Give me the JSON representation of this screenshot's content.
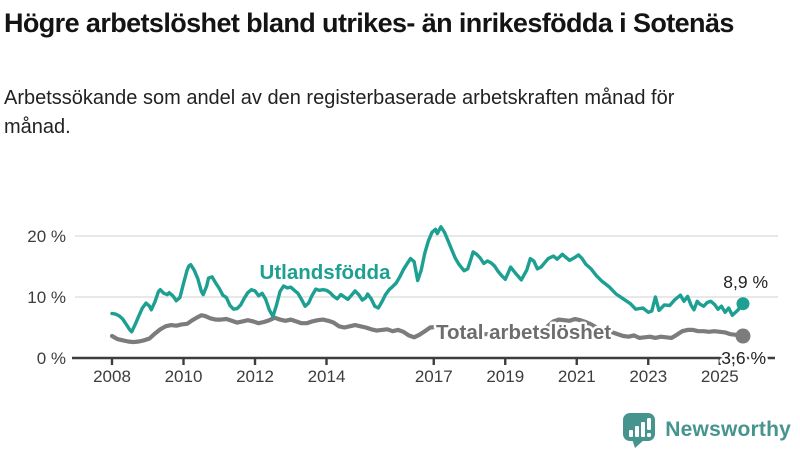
{
  "header": {
    "title": "Högre arbetslöshet bland utrikes- än inrikesfödda i Sotenäs",
    "subtitle": "Arbetssökande som andel av den registerbaserade arbetskraften månad för månad."
  },
  "footer": {
    "brand": "Newsworthy"
  },
  "colors": {
    "accent_teal": "#1d9f92",
    "line_gray": "#7c7c7c",
    "label_gray": "#6d6d70",
    "axis": "#3d3d3d",
    "gridline": "#e0e0e0",
    "logo_teal": "#45948e"
  },
  "chart_data": {
    "type": "line",
    "title": "Högre arbetslöshet bland utrikes- än inrikesfödda i Sotenäs",
    "subtitle": "Arbetssökande som andel av den registerbaserade arbetskraften månad för månad.",
    "unit": "%",
    "x_axis": {
      "range": [
        2008,
        2025.75
      ],
      "ticks": [
        2008,
        2010,
        2012,
        2014,
        2017,
        2019,
        2021,
        2023,
        2025
      ]
    },
    "y_axis": {
      "range": [
        0,
        22
      ],
      "ticks": [
        0,
        10,
        20
      ],
      "tick_labels": [
        "0 %",
        "10 %",
        "20 %"
      ],
      "gridlines": [
        10,
        20
      ]
    },
    "legend_position": "inline-labels",
    "grid": "horizontal-only",
    "series": [
      {
        "name": "Utlandsfödda",
        "color": "#1d9f92",
        "end_label": "8,9 %",
        "end_value": 8.9,
        "points": [
          [
            2008.0,
            7.3
          ],
          [
            2008.1,
            7.2
          ],
          [
            2008.2,
            6.9
          ],
          [
            2008.3,
            6.4
          ],
          [
            2008.4,
            5.5
          ],
          [
            2008.5,
            4.6
          ],
          [
            2008.55,
            4.3
          ],
          [
            2008.65,
            5.5
          ],
          [
            2008.75,
            6.9
          ],
          [
            2008.85,
            8.2
          ],
          [
            2008.95,
            9.0
          ],
          [
            2009.05,
            8.5
          ],
          [
            2009.1,
            7.9
          ],
          [
            2009.2,
            9.2
          ],
          [
            2009.3,
            10.9
          ],
          [
            2009.35,
            11.2
          ],
          [
            2009.45,
            10.6
          ],
          [
            2009.55,
            10.4
          ],
          [
            2009.6,
            10.7
          ],
          [
            2009.7,
            10.2
          ],
          [
            2009.8,
            9.4
          ],
          [
            2009.9,
            9.9
          ],
          [
            2010.0,
            12.2
          ],
          [
            2010.1,
            14.4
          ],
          [
            2010.15,
            15.1
          ],
          [
            2010.2,
            15.3
          ],
          [
            2010.3,
            14.4
          ],
          [
            2010.4,
            13.0
          ],
          [
            2010.5,
            10.9
          ],
          [
            2010.55,
            10.4
          ],
          [
            2010.65,
            11.8
          ],
          [
            2010.7,
            13.1
          ],
          [
            2010.8,
            13.3
          ],
          [
            2010.9,
            12.3
          ],
          [
            2011.0,
            11.4
          ],
          [
            2011.1,
            10.3
          ],
          [
            2011.2,
            9.9
          ],
          [
            2011.3,
            8.6
          ],
          [
            2011.4,
            8.0
          ],
          [
            2011.5,
            8.1
          ],
          [
            2011.6,
            8.7
          ],
          [
            2011.7,
            9.8
          ],
          [
            2011.8,
            10.7
          ],
          [
            2011.9,
            11.2
          ],
          [
            2012.0,
            11.0
          ],
          [
            2012.1,
            10.2
          ],
          [
            2012.2,
            10.6
          ],
          [
            2012.3,
            9.6
          ],
          [
            2012.4,
            7.9
          ],
          [
            2012.5,
            6.8
          ],
          [
            2012.6,
            8.6
          ],
          [
            2012.7,
            10.9
          ],
          [
            2012.8,
            11.8
          ],
          [
            2012.9,
            11.5
          ],
          [
            2013.0,
            11.6
          ],
          [
            2013.1,
            11.1
          ],
          [
            2013.2,
            10.6
          ],
          [
            2013.3,
            9.6
          ],
          [
            2013.4,
            8.5
          ],
          [
            2013.5,
            9.0
          ],
          [
            2013.6,
            10.3
          ],
          [
            2013.7,
            11.3
          ],
          [
            2013.8,
            11.1
          ],
          [
            2013.9,
            11.2
          ],
          [
            2014.0,
            11.1
          ],
          [
            2014.1,
            10.7
          ],
          [
            2014.2,
            10.1
          ],
          [
            2014.3,
            9.7
          ],
          [
            2014.4,
            10.4
          ],
          [
            2014.5,
            10.0
          ],
          [
            2014.6,
            9.6
          ],
          [
            2014.7,
            10.3
          ],
          [
            2014.8,
            11.0
          ],
          [
            2014.9,
            10.4
          ],
          [
            2015.0,
            9.5
          ],
          [
            2015.1,
            9.9
          ],
          [
            2015.15,
            10.5
          ],
          [
            2015.25,
            9.7
          ],
          [
            2015.35,
            8.5
          ],
          [
            2015.45,
            8.2
          ],
          [
            2015.55,
            9.2
          ],
          [
            2015.65,
            10.4
          ],
          [
            2015.75,
            11.2
          ],
          [
            2015.85,
            11.7
          ],
          [
            2015.95,
            12.3
          ],
          [
            2016.05,
            13.3
          ],
          [
            2016.15,
            14.5
          ],
          [
            2016.25,
            15.4
          ],
          [
            2016.35,
            16.3
          ],
          [
            2016.45,
            15.8
          ],
          [
            2016.55,
            12.7
          ],
          [
            2016.65,
            14.4
          ],
          [
            2016.75,
            17.2
          ],
          [
            2016.85,
            19.2
          ],
          [
            2016.95,
            20.6
          ],
          [
            2017.05,
            21.1
          ],
          [
            2017.1,
            20.4
          ],
          [
            2017.2,
            21.5
          ],
          [
            2017.3,
            20.6
          ],
          [
            2017.4,
            19.2
          ],
          [
            2017.5,
            17.8
          ],
          [
            2017.6,
            16.4
          ],
          [
            2017.7,
            15.4
          ],
          [
            2017.85,
            14.3
          ],
          [
            2017.95,
            14.6
          ],
          [
            2018.05,
            16.4
          ],
          [
            2018.1,
            17.4
          ],
          [
            2018.2,
            17.0
          ],
          [
            2018.3,
            16.4
          ],
          [
            2018.4,
            15.5
          ],
          [
            2018.5,
            15.9
          ],
          [
            2018.6,
            15.6
          ],
          [
            2018.7,
            15.1
          ],
          [
            2018.8,
            14.2
          ],
          [
            2018.9,
            13.5
          ],
          [
            2019.0,
            12.9
          ],
          [
            2019.1,
            14.2
          ],
          [
            2019.15,
            14.9
          ],
          [
            2019.3,
            13.8
          ],
          [
            2019.45,
            12.8
          ],
          [
            2019.6,
            14.4
          ],
          [
            2019.7,
            16.3
          ],
          [
            2019.8,
            15.9
          ],
          [
            2019.9,
            14.6
          ],
          [
            2020.0,
            14.9
          ],
          [
            2020.1,
            15.6
          ],
          [
            2020.2,
            16.3
          ],
          [
            2020.35,
            16.7
          ],
          [
            2020.45,
            16.2
          ],
          [
            2020.6,
            17.0
          ],
          [
            2020.7,
            16.5
          ],
          [
            2020.8,
            16.0
          ],
          [
            2020.95,
            16.5
          ],
          [
            2021.05,
            16.9
          ],
          [
            2021.15,
            16.3
          ],
          [
            2021.25,
            15.4
          ],
          [
            2021.4,
            14.6
          ],
          [
            2021.55,
            13.5
          ],
          [
            2021.7,
            12.6
          ],
          [
            2021.9,
            11.7
          ],
          [
            2022.1,
            10.5
          ],
          [
            2022.3,
            9.7
          ],
          [
            2022.5,
            8.9
          ],
          [
            2022.65,
            8.0
          ],
          [
            2022.85,
            8.2
          ],
          [
            2023.0,
            7.5
          ],
          [
            2023.1,
            7.7
          ],
          [
            2023.2,
            10.0
          ],
          [
            2023.3,
            7.8
          ],
          [
            2023.45,
            8.7
          ],
          [
            2023.6,
            8.6
          ],
          [
            2023.75,
            9.6
          ],
          [
            2023.9,
            10.3
          ],
          [
            2024.0,
            9.3
          ],
          [
            2024.1,
            10.1
          ],
          [
            2024.2,
            8.6
          ],
          [
            2024.28,
            7.9
          ],
          [
            2024.37,
            9.3
          ],
          [
            2024.45,
            8.8
          ],
          [
            2024.55,
            8.5
          ],
          [
            2024.65,
            9.1
          ],
          [
            2024.75,
            9.3
          ],
          [
            2024.85,
            8.8
          ],
          [
            2024.95,
            8.0
          ],
          [
            2025.05,
            8.5
          ],
          [
            2025.15,
            7.5
          ],
          [
            2025.25,
            8.2
          ],
          [
            2025.35,
            7.0
          ],
          [
            2025.5,
            7.8
          ],
          [
            2025.65,
            8.9
          ]
        ]
      },
      {
        "name": "Total arbetslöshet",
        "color": "#7c7c7c",
        "end_label": "3,6 %",
        "end_value": 3.6,
        "points": [
          [
            2008.0,
            3.6
          ],
          [
            2008.15,
            3.1
          ],
          [
            2008.3,
            2.9
          ],
          [
            2008.45,
            2.7
          ],
          [
            2008.6,
            2.6
          ],
          [
            2008.75,
            2.7
          ],
          [
            2008.9,
            2.9
          ],
          [
            2009.05,
            3.2
          ],
          [
            2009.2,
            4.0
          ],
          [
            2009.35,
            4.7
          ],
          [
            2009.5,
            5.2
          ],
          [
            2009.65,
            5.4
          ],
          [
            2009.8,
            5.3
          ],
          [
            2009.95,
            5.5
          ],
          [
            2010.1,
            5.6
          ],
          [
            2010.25,
            6.2
          ],
          [
            2010.4,
            6.7
          ],
          [
            2010.5,
            7.0
          ],
          [
            2010.6,
            6.9
          ],
          [
            2010.75,
            6.5
          ],
          [
            2010.9,
            6.3
          ],
          [
            2011.05,
            6.3
          ],
          [
            2011.2,
            6.4
          ],
          [
            2011.35,
            6.1
          ],
          [
            2011.5,
            5.8
          ],
          [
            2011.65,
            6.0
          ],
          [
            2011.8,
            6.2
          ],
          [
            2011.95,
            6.0
          ],
          [
            2012.1,
            5.7
          ],
          [
            2012.25,
            5.9
          ],
          [
            2012.4,
            6.2
          ],
          [
            2012.55,
            6.6
          ],
          [
            2012.7,
            6.3
          ],
          [
            2012.85,
            6.1
          ],
          [
            2013.0,
            6.3
          ],
          [
            2013.15,
            6.0
          ],
          [
            2013.3,
            5.7
          ],
          [
            2013.45,
            5.7
          ],
          [
            2013.6,
            6.0
          ],
          [
            2013.75,
            6.2
          ],
          [
            2013.9,
            6.3
          ],
          [
            2014.05,
            6.1
          ],
          [
            2014.2,
            5.8
          ],
          [
            2014.35,
            5.2
          ],
          [
            2014.5,
            5.0
          ],
          [
            2014.65,
            5.2
          ],
          [
            2014.8,
            5.4
          ],
          [
            2014.95,
            5.2
          ],
          [
            2015.1,
            5.0
          ],
          [
            2015.25,
            4.7
          ],
          [
            2015.4,
            4.5
          ],
          [
            2015.55,
            4.6
          ],
          [
            2015.7,
            4.7
          ],
          [
            2015.85,
            4.4
          ],
          [
            2016.0,
            4.6
          ],
          [
            2016.15,
            4.3
          ],
          [
            2016.3,
            3.7
          ],
          [
            2016.45,
            3.4
          ],
          [
            2016.6,
            3.8
          ],
          [
            2016.75,
            4.4
          ],
          [
            2016.9,
            5.0
          ],
          [
            2017.05,
            5.1
          ],
          [
            2017.2,
            4.8
          ],
          [
            2017.35,
            4.5
          ],
          [
            2017.5,
            4.3
          ],
          [
            2017.65,
            4.2
          ],
          [
            2017.8,
            4.4
          ],
          [
            2017.95,
            4.6
          ],
          [
            2018.1,
            4.4
          ],
          [
            2018.25,
            4.1
          ],
          [
            2018.4,
            3.9
          ],
          [
            2018.55,
            3.9
          ],
          [
            2018.7,
            4.0
          ],
          [
            2018.85,
            4.1
          ],
          [
            2019.0,
            4.2
          ],
          [
            2019.15,
            4.0
          ],
          [
            2019.3,
            3.9
          ],
          [
            2019.45,
            3.8
          ],
          [
            2019.6,
            3.9
          ],
          [
            2019.75,
            4.1
          ],
          [
            2019.9,
            4.2
          ],
          [
            2020.05,
            4.4
          ],
          [
            2020.2,
            5.3
          ],
          [
            2020.35,
            6.0
          ],
          [
            2020.5,
            6.3
          ],
          [
            2020.65,
            6.2
          ],
          [
            2020.8,
            6.1
          ],
          [
            2020.95,
            6.4
          ],
          [
            2021.1,
            6.2
          ],
          [
            2021.25,
            5.9
          ],
          [
            2021.4,
            5.5
          ],
          [
            2021.55,
            5.0
          ],
          [
            2021.7,
            4.7
          ],
          [
            2021.85,
            4.5
          ],
          [
            2022.0,
            4.2
          ],
          [
            2022.15,
            3.9
          ],
          [
            2022.3,
            3.6
          ],
          [
            2022.45,
            3.5
          ],
          [
            2022.6,
            3.7
          ],
          [
            2022.75,
            3.3
          ],
          [
            2022.9,
            3.4
          ],
          [
            2023.05,
            3.5
          ],
          [
            2023.2,
            3.3
          ],
          [
            2023.35,
            3.5
          ],
          [
            2023.5,
            3.4
          ],
          [
            2023.65,
            3.3
          ],
          [
            2023.8,
            3.8
          ],
          [
            2023.95,
            4.4
          ],
          [
            2024.1,
            4.6
          ],
          [
            2024.25,
            4.6
          ],
          [
            2024.4,
            4.4
          ],
          [
            2024.55,
            4.4
          ],
          [
            2024.7,
            4.3
          ],
          [
            2024.85,
            4.4
          ],
          [
            2025.0,
            4.3
          ],
          [
            2025.15,
            4.2
          ],
          [
            2025.3,
            3.9
          ],
          [
            2025.45,
            3.8
          ],
          [
            2025.65,
            3.6
          ]
        ]
      }
    ]
  }
}
